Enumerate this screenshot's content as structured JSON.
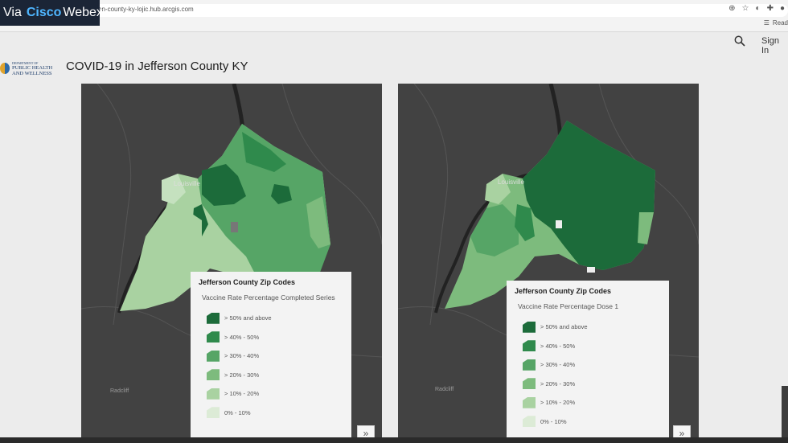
{
  "overlay": {
    "via": "Via",
    "brand1": "Cisco",
    "brand2": "Webex"
  },
  "browser": {
    "url": "son-county-ky-lojic.hub.arcgis.com",
    "reading_list": "Read"
  },
  "header": {
    "logo_line1": "DEPARTMENT OF",
    "logo_line2": "PUBLIC HEALTH",
    "logo_line3": "AND WELLNESS",
    "title": "COVID-19 in Jefferson County KY",
    "sign_in": "Sign In"
  },
  "maps": [
    {
      "city_label": "Louisville",
      "place_label": "Radcliff",
      "legend_title": "Jefferson County Zip Codes",
      "legend_subtitle": "Vaccine Rate Percentage Completed Series",
      "legend_items": [
        "> 50% and above",
        "> 40% - 50%",
        "> 30% - 40%",
        "> 20% - 30%",
        "> 10% - 20%",
        "0% - 10%"
      ]
    },
    {
      "city_label": "Louisville",
      "place_label": "Radcliff",
      "legend_title": "Jefferson County Zip Codes",
      "legend_subtitle": "Vaccine Rate Percentage Dose 1",
      "legend_items": [
        "> 50% and above",
        "> 40% - 50%",
        "> 30% - 40%",
        "> 20% - 30%",
        "> 10% - 20%",
        "0% - 10%"
      ]
    }
  ],
  "legend_colors": [
    "#1c6b3a",
    "#2f8a4c",
    "#56a566",
    "#7dbb7d",
    "#a9d2a1",
    "#dcebd6"
  ],
  "icons": {
    "expand": "»",
    "search": "⌕"
  }
}
